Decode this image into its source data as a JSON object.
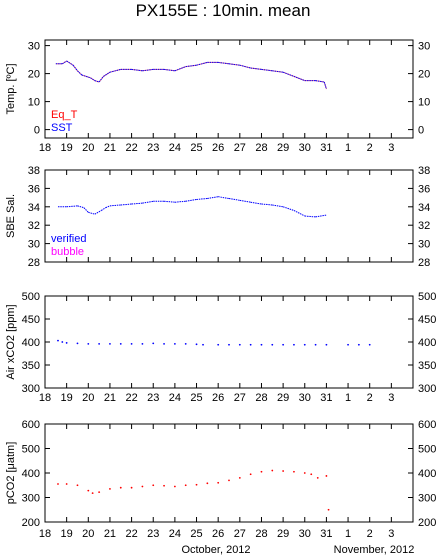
{
  "title": "PX155E : 10min. mean",
  "x_axis": {
    "tick_labels": [
      "18",
      "19",
      "20",
      "21",
      "22",
      "23",
      "24",
      "25",
      "26",
      "27",
      "28",
      "29",
      "30",
      "31",
      "1",
      "2",
      "3"
    ],
    "month_labels": [
      "October, 2012",
      "November, 2012"
    ]
  },
  "colors": {
    "eq_t": "#ff0000",
    "sst": "#0000ff",
    "verified": "#0000ff",
    "bubble": "#ff00ff",
    "xco2": "#0000ff",
    "pco2": "#ff0000",
    "axis": "#000000"
  },
  "chart_data": [
    {
      "type": "line",
      "ylabel": "Temp. [ºC]",
      "ylim": [
        -3,
        32
      ],
      "yticks": [
        0,
        10,
        20,
        30
      ],
      "xlim": [
        18,
        35
      ],
      "legend": [
        "Eq_T",
        "SST"
      ],
      "legend_placement": "bottom-left",
      "series": [
        {
          "name": "Eq_T",
          "x": [
            18.5,
            18.8,
            19.0,
            19.3,
            19.5,
            19.7,
            19.9,
            20.1,
            20.3,
            20.5,
            20.7,
            21.0,
            21.5,
            22.0,
            22.5,
            23.0,
            23.5,
            24.0,
            24.5,
            25.0,
            25.5,
            26.0,
            26.5,
            27.0,
            27.5,
            28.0,
            28.5,
            29.0,
            29.5,
            30.0,
            30.5,
            30.9,
            31.0
          ],
          "y": [
            23.5,
            23.5,
            24.5,
            23.0,
            21.0,
            19.5,
            19.0,
            18.5,
            17.5,
            17.0,
            19.0,
            20.5,
            21.5,
            21.5,
            21.0,
            21.5,
            21.5,
            21.0,
            22.5,
            23.0,
            24.0,
            24.0,
            23.5,
            23.0,
            22.0,
            21.5,
            21.0,
            20.5,
            19.0,
            17.5,
            17.5,
            17.0,
            14.5
          ]
        },
        {
          "name": "SST",
          "x": [
            18.5,
            18.8,
            19.0,
            19.3,
            19.5,
            19.7,
            19.9,
            20.1,
            20.3,
            20.5,
            20.7,
            21.0,
            21.5,
            22.0,
            22.5,
            23.0,
            23.5,
            24.0,
            24.5,
            25.0,
            25.5,
            26.0,
            26.5,
            27.0,
            27.5,
            28.0,
            28.5,
            29.0,
            29.5,
            30.0,
            30.5,
            30.9,
            31.0
          ],
          "y": [
            23.5,
            23.5,
            24.5,
            23.0,
            21.0,
            19.5,
            19.0,
            18.5,
            17.5,
            17.0,
            19.0,
            20.5,
            21.5,
            21.5,
            21.0,
            21.5,
            21.5,
            21.0,
            22.5,
            23.0,
            24.0,
            24.0,
            23.5,
            23.0,
            22.0,
            21.5,
            21.0,
            20.5,
            19.0,
            17.5,
            17.5,
            17.0,
            14.5
          ]
        }
      ]
    },
    {
      "type": "line",
      "ylabel": "SBE Sal.",
      "ylim": [
        28,
        38
      ],
      "yticks": [
        28,
        30,
        32,
        34,
        36,
        38
      ],
      "xlim": [
        18,
        35
      ],
      "legend": [
        "verified",
        "bubble"
      ],
      "legend_placement": "bottom-left",
      "series": [
        {
          "name": "verified",
          "x": [
            18.6,
            19.0,
            19.5,
            19.8,
            20.0,
            20.3,
            20.6,
            20.8,
            21.0,
            21.5,
            22.0,
            22.5,
            23.0,
            23.5,
            24.0,
            24.5,
            25.0,
            25.5,
            26.0,
            26.5,
            27.0,
            27.5,
            28.0,
            28.5,
            29.0,
            29.5,
            30.0,
            30.5,
            31.0
          ],
          "y": [
            34.0,
            34.0,
            34.1,
            33.9,
            33.4,
            33.2,
            33.6,
            33.9,
            34.1,
            34.2,
            34.3,
            34.4,
            34.6,
            34.6,
            34.5,
            34.6,
            34.8,
            34.9,
            35.1,
            34.9,
            34.7,
            34.5,
            34.3,
            34.2,
            34.0,
            33.6,
            33.0,
            32.9,
            33.1
          ]
        }
      ]
    },
    {
      "type": "scatter",
      "ylabel": "Air xCO2 [ppm]",
      "ylim": [
        300,
        500
      ],
      "yticks": [
        300,
        350,
        400,
        450,
        500
      ],
      "xlim": [
        18,
        35
      ],
      "series": [
        {
          "name": "",
          "x": [
            18.6,
            18.8,
            19.0,
            19.5,
            20.0,
            20.5,
            21.0,
            21.5,
            22.0,
            22.5,
            23.0,
            23.5,
            24.0,
            24.5,
            25.0,
            25.3,
            26.0,
            26.5,
            27.0,
            27.5,
            28.0,
            28.5,
            29.0,
            29.5,
            30.0,
            30.5,
            31.0,
            32.0,
            32.5,
            33.0
          ],
          "y": [
            403,
            400,
            398,
            397,
            396,
            396,
            396,
            396,
            396,
            396,
            397,
            396,
            396,
            396,
            395,
            394,
            394,
            394,
            394,
            394,
            394,
            394,
            394,
            394,
            394,
            394,
            394,
            394,
            394,
            394
          ]
        }
      ]
    },
    {
      "type": "scatter",
      "ylabel": "pCO2 [μatm]",
      "ylim": [
        200,
        600
      ],
      "yticks": [
        200,
        300,
        400,
        500,
        600
      ],
      "xlim": [
        18,
        35
      ],
      "series": [
        {
          "name": "",
          "x": [
            18.6,
            19.0,
            19.5,
            20.0,
            20.2,
            20.5,
            21.0,
            21.5,
            22.0,
            22.5,
            23.0,
            23.5,
            24.0,
            24.5,
            25.0,
            25.5,
            26.0,
            26.5,
            27.0,
            27.5,
            28.0,
            28.5,
            29.0,
            29.5,
            30.0,
            30.3,
            30.6,
            31.0,
            31.1
          ],
          "y": [
            355,
            355,
            350,
            328,
            318,
            322,
            335,
            340,
            340,
            345,
            350,
            348,
            345,
            350,
            352,
            358,
            360,
            370,
            380,
            395,
            405,
            410,
            408,
            405,
            400,
            395,
            380,
            388,
            250
          ]
        }
      ]
    }
  ]
}
